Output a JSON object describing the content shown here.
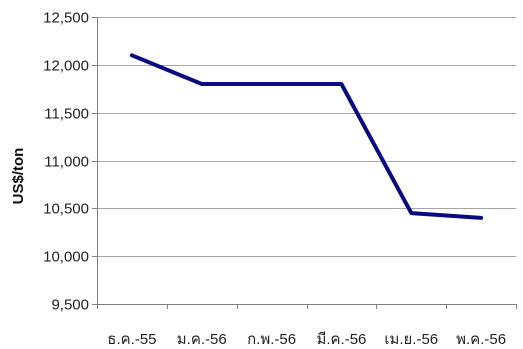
{
  "chart_data": {
    "type": "line",
    "title": "",
    "xlabel": "",
    "ylabel": "US$/ton",
    "categories": [
      "ธ.ค.-55",
      "ม.ค.-56",
      "ก.พ.-56",
      "มี.ค.-56",
      "เม.ย.-56",
      "พ.ค.-56"
    ],
    "series": [
      {
        "values": [
          12100,
          11800,
          11800,
          11800,
          10450,
          10400
        ]
      }
    ],
    "ylim": [
      9500,
      12500
    ],
    "yticks": [
      9500,
      10000,
      10500,
      11000,
      11500,
      12000,
      12500
    ],
    "ytick_labels": [
      "9,500",
      "10,000",
      "10,500",
      "11,000",
      "11,500",
      "12,000",
      "12,500"
    ],
    "grid": true,
    "legend": "none",
    "colors": {
      "series": "#0a0a80",
      "grid": "#a6a6a6"
    }
  }
}
